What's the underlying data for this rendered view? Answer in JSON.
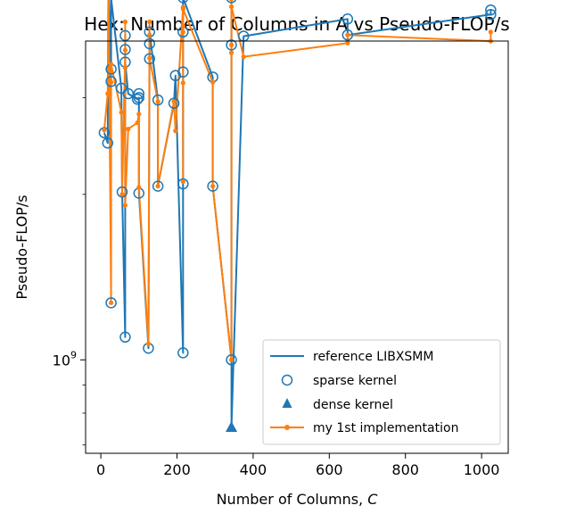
{
  "chart_data": {
    "type": "line",
    "title": "Hex: Number of Columns in A vs Pseudo-FLOP/s",
    "xlabel_prefix": "Number of Columns, ",
    "xlabel_var": "C",
    "ylabel": "Pseudo-FLOP/s",
    "xlim": [
      -40,
      1070
    ],
    "ylim_log10": [
      8.83,
      9.58
    ],
    "yscale": "log",
    "x_ticks": [
      0,
      200,
      400,
      600,
      800,
      1000
    ],
    "x_tick_labels": [
      "0",
      "200",
      "400",
      "600",
      "800",
      "1000"
    ],
    "y_ticks_log10": [
      9.0
    ],
    "y_tick_base": "10",
    "y_tick_exp": "9",
    "legend_position": "lower-right",
    "legend": [
      {
        "label": "reference LIBXSMM",
        "marker": "line",
        "color": "#1f77b4"
      },
      {
        "label": "sparse kernel",
        "marker": "open-circle",
        "color": "#1f77b4"
      },
      {
        "label": "dense kernel",
        "marker": "triangle",
        "color": "#1f77b4"
      },
      {
        "label": "my 1st implementation",
        "marker": "line-dot",
        "color": "#ff7f0e"
      }
    ],
    "series": [
      {
        "name": "reference LIBXSMM",
        "color": "#1f77b4",
        "x": [
          9,
          18,
          20,
          27,
          27,
          27,
          54,
          56,
          64,
          64,
          64,
          64,
          72,
          96,
          100,
          100,
          125,
          128,
          128,
          128,
          150,
          150,
          192,
          196,
          216,
          216,
          216,
          216,
          216,
          216,
          294,
          294,
          343,
          343,
          343,
          343,
          343,
          375,
          648,
          648,
          1024,
          1024
        ],
        "y": [
          2590000000.0,
          2480000000.0,
          4900000000.0,
          3210000000.0,
          3380000000.0,
          4550000000.0,
          3120000000.0,
          2020000000.0,
          1100000000.0,
          3670000000.0,
          3890000000.0,
          3480000000.0,
          3050000000.0,
          2980000000.0,
          3000000000.0,
          2010000000.0,
          1050000000.0,
          3530000000.0,
          3760000000.0,
          3950000000.0,
          2970000000.0,
          2070000000.0,
          2930000000.0,
          3290000000.0,
          1030000000.0,
          2090000000.0,
          3340000000.0,
          3740000000.0,
          3950000000.0,
          4560000000.0,
          3270000000.0,
          2070000000.0,
          1000000000.0,
          3740000000.0,
          4340000000.0,
          3920000000.0,
          755000000.0,
          3880000000.0,
          4170000000.0,
          3900000000.0,
          4250000000.0,
          4330000000.0
        ]
      },
      {
        "name": "my 1st implementation",
        "color": "#ff7f0e",
        "x": [
          9,
          18,
          20,
          27,
          27,
          27,
          54,
          56,
          64,
          64,
          64,
          64,
          72,
          96,
          100,
          100,
          125,
          128,
          128,
          128,
          150,
          150,
          192,
          196,
          216,
          216,
          216,
          216,
          216,
          216,
          294,
          294,
          343,
          343,
          343,
          343,
          343,
          375,
          648,
          648,
          1024,
          1024
        ],
        "y": [
          2620000000.0,
          3050000000.0,
          4950000000.0,
          1270000000.0,
          3200000000.0,
          3450000000.0,
          2820000000.0,
          2000000000.0,
          3660000000.0,
          4120000000.0,
          3400000000.0,
          1910000000.0,
          2630000000.0,
          2700000000.0,
          2800000000.0,
          2060000000.0,
          1070000000.0,
          4120000000.0,
          3900000000.0,
          3540000000.0,
          2950000000.0,
          2070000000.0,
          2950000000.0,
          2610000000.0,
          4380000000.0,
          4050000000.0,
          3190000000.0,
          2110000000.0,
          3950000000.0,
          4350000000.0,
          3200000000.0,
          2070000000.0,
          1000000000.0,
          3740000000.0,
          4530000000.0,
          3620000000.0,
          4390000000.0,
          3560000000.0,
          3770000000.0,
          3900000000.0,
          3800000000.0,
          3950000000.0
        ]
      }
    ],
    "sparse_points": {
      "name": "sparse kernel",
      "color": "#1f77b4",
      "x": [
        9,
        18,
        20,
        20,
        27,
        27,
        27,
        54,
        56,
        64,
        64,
        64,
        64,
        72,
        96,
        100,
        100,
        100,
        125,
        128,
        128,
        128,
        150,
        150,
        192,
        196,
        216,
        216,
        216,
        216,
        216,
        294,
        294,
        343,
        343,
        343,
        375,
        648,
        648,
        1024,
        1024
      ],
      "y": [
        2590000000.0,
        2480000000.0,
        4900000000.0,
        4880000000.0,
        3210000000.0,
        3380000000.0,
        1270000000.0,
        3120000000.0,
        2020000000.0,
        1100000000.0,
        3670000000.0,
        3890000000.0,
        3480000000.0,
        3050000000.0,
        2980000000.0,
        3000000000.0,
        2010000000.0,
        3050000000.0,
        1050000000.0,
        3530000000.0,
        3760000000.0,
        3950000000.0,
        2970000000.0,
        2070000000.0,
        2930000000.0,
        3290000000.0,
        1030000000.0,
        2090000000.0,
        3340000000.0,
        3950000000.0,
        4560000000.0,
        3270000000.0,
        2070000000.0,
        1000000000.0,
        3740000000.0,
        4560000000.0,
        3880000000.0,
        4170000000.0,
        3900000000.0,
        4250000000.0,
        4330000000.0
      ]
    },
    "dense_points": {
      "name": "dense kernel",
      "color": "#1f77b4",
      "x": [
        343
      ],
      "y": [
        755000000.0
      ]
    }
  }
}
